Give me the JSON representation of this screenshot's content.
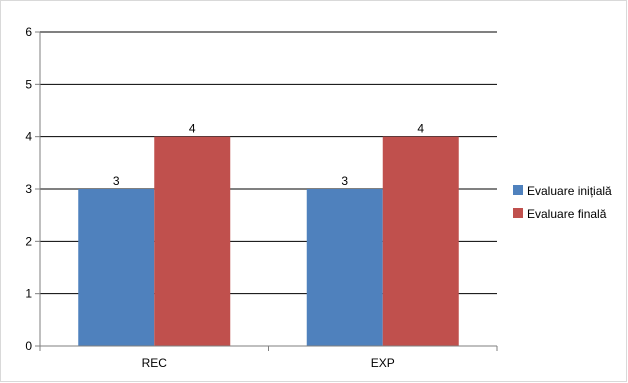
{
  "chart_data": {
    "type": "bar",
    "categories": [
      "REC",
      "EXP"
    ],
    "series": [
      {
        "name": "Evaluare inițială",
        "values": [
          3,
          3
        ],
        "color": "#4f81bd"
      },
      {
        "name": "Evaluare finală",
        "values": [
          4,
          4
        ],
        "color": "#c0504d"
      }
    ],
    "title": "",
    "xlabel": "",
    "ylabel": "",
    "ylim": [
      0,
      6
    ],
    "yticks": [
      "0",
      "1",
      "2",
      "3",
      "4",
      "5",
      "6"
    ],
    "grid": true,
    "legend_position": "right",
    "data_labels": true
  }
}
